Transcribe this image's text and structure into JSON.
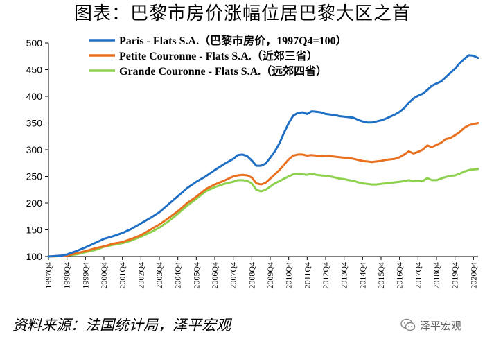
{
  "title": "图表：巴黎市房价涨幅位居巴黎大区之首",
  "source": "资料来源：法国统计局，泽平宏观",
  "watermark": "泽平宏观",
  "chart_data": {
    "type": "line",
    "ylim": [
      100,
      500
    ],
    "yticks": [
      100,
      150,
      200,
      250,
      300,
      350,
      400,
      450,
      500
    ],
    "x_start": 1997.75,
    "x_end": 2021.0,
    "x_tick_labels": [
      "1997Q4",
      "1998Q4",
      "1999Q4",
      "2000Q4",
      "2001Q4",
      "2002Q4",
      "2003Q4",
      "2004Q4",
      "2005Q4",
      "2006Q4",
      "2007Q4",
      "2008Q4",
      "2009Q4",
      "2010Q4",
      "2011Q4",
      "2012Q4",
      "2013Q4",
      "2014Q4",
      "2015Q4",
      "2016Q4",
      "2017Q4",
      "2018Q4",
      "2019Q4",
      "2020Q4"
    ],
    "series": [
      {
        "name": "Paris - Flats S.A.（巴黎市房价，1997Q4=100）",
        "color": "#1f6fc5",
        "points": [
          [
            1997.75,
            100
          ],
          [
            1998.5,
            102
          ],
          [
            1998.75,
            104
          ],
          [
            1999.25,
            110
          ],
          [
            1999.75,
            117
          ],
          [
            2000.25,
            125
          ],
          [
            2000.75,
            133
          ],
          [
            2001.25,
            138
          ],
          [
            2001.75,
            144
          ],
          [
            2002.25,
            152
          ],
          [
            2002.75,
            162
          ],
          [
            2003.25,
            172
          ],
          [
            2003.75,
            183
          ],
          [
            2004.25,
            198
          ],
          [
            2004.75,
            213
          ],
          [
            2005.25,
            228
          ],
          [
            2005.75,
            240
          ],
          [
            2006.25,
            250
          ],
          [
            2006.75,
            262
          ],
          [
            2007.25,
            273
          ],
          [
            2007.75,
            283
          ],
          [
            2008.0,
            290
          ],
          [
            2008.25,
            291
          ],
          [
            2008.5,
            288
          ],
          [
            2008.75,
            280
          ],
          [
            2009.0,
            270
          ],
          [
            2009.25,
            270
          ],
          [
            2009.5,
            274
          ],
          [
            2009.75,
            285
          ],
          [
            2010.0,
            297
          ],
          [
            2010.25,
            312
          ],
          [
            2010.5,
            332
          ],
          [
            2010.75,
            350
          ],
          [
            2011.0,
            364
          ],
          [
            2011.25,
            369
          ],
          [
            2011.5,
            370
          ],
          [
            2011.75,
            367
          ],
          [
            2012.0,
            372
          ],
          [
            2012.25,
            371
          ],
          [
            2012.5,
            370
          ],
          [
            2012.75,
            367
          ],
          [
            2013.0,
            366
          ],
          [
            2013.25,
            365
          ],
          [
            2013.5,
            363
          ],
          [
            2013.75,
            362
          ],
          [
            2014.0,
            361
          ],
          [
            2014.25,
            360
          ],
          [
            2014.5,
            356
          ],
          [
            2014.75,
            353
          ],
          [
            2015.0,
            351
          ],
          [
            2015.25,
            351
          ],
          [
            2015.5,
            353
          ],
          [
            2015.75,
            355
          ],
          [
            2016.0,
            358
          ],
          [
            2016.25,
            362
          ],
          [
            2016.5,
            366
          ],
          [
            2016.75,
            371
          ],
          [
            2017.0,
            378
          ],
          [
            2017.25,
            388
          ],
          [
            2017.5,
            396
          ],
          [
            2017.75,
            401
          ],
          [
            2018.0,
            405
          ],
          [
            2018.25,
            412
          ],
          [
            2018.5,
            420
          ],
          [
            2018.75,
            424
          ],
          [
            2019.0,
            428
          ],
          [
            2019.25,
            436
          ],
          [
            2019.5,
            444
          ],
          [
            2019.75,
            452
          ],
          [
            2020.0,
            462
          ],
          [
            2020.25,
            470
          ],
          [
            2020.5,
            477
          ],
          [
            2020.75,
            476
          ],
          [
            2021.0,
            472
          ]
        ]
      },
      {
        "name": "Petite Couronne - Flats S.A.（近郊三省）",
        "color": "#e8701e",
        "points": [
          [
            1997.75,
            100
          ],
          [
            1998.5,
            101
          ],
          [
            1998.75,
            102
          ],
          [
            1999.25,
            106
          ],
          [
            1999.75,
            110
          ],
          [
            2000.25,
            115
          ],
          [
            2000.75,
            119
          ],
          [
            2001.25,
            124
          ],
          [
            2001.75,
            127
          ],
          [
            2002.25,
            133
          ],
          [
            2002.75,
            140
          ],
          [
            2003.25,
            150
          ],
          [
            2003.75,
            160
          ],
          [
            2004.25,
            172
          ],
          [
            2004.75,
            185
          ],
          [
            2005.25,
            200
          ],
          [
            2005.75,
            212
          ],
          [
            2006.25,
            226
          ],
          [
            2006.75,
            235
          ],
          [
            2007.25,
            242
          ],
          [
            2007.75,
            250
          ],
          [
            2008.0,
            252
          ],
          [
            2008.25,
            253
          ],
          [
            2008.5,
            252
          ],
          [
            2008.75,
            248
          ],
          [
            2009.0,
            237
          ],
          [
            2009.25,
            235
          ],
          [
            2009.5,
            238
          ],
          [
            2009.75,
            246
          ],
          [
            2010.0,
            254
          ],
          [
            2010.25,
            262
          ],
          [
            2010.5,
            272
          ],
          [
            2010.75,
            282
          ],
          [
            2011.0,
            289
          ],
          [
            2011.25,
            291
          ],
          [
            2011.5,
            291
          ],
          [
            2011.75,
            289
          ],
          [
            2012.0,
            290
          ],
          [
            2012.25,
            289
          ],
          [
            2012.5,
            289
          ],
          [
            2012.75,
            288
          ],
          [
            2013.0,
            288
          ],
          [
            2013.25,
            287
          ],
          [
            2013.5,
            286
          ],
          [
            2013.75,
            285
          ],
          [
            2014.0,
            285
          ],
          [
            2014.25,
            283
          ],
          [
            2014.5,
            281
          ],
          [
            2014.75,
            279
          ],
          [
            2015.0,
            278
          ],
          [
            2015.25,
            277
          ],
          [
            2015.5,
            278
          ],
          [
            2015.75,
            279
          ],
          [
            2016.0,
            281
          ],
          [
            2016.25,
            282
          ],
          [
            2016.5,
            283
          ],
          [
            2016.75,
            286
          ],
          [
            2017.0,
            291
          ],
          [
            2017.25,
            297
          ],
          [
            2017.5,
            293
          ],
          [
            2017.75,
            296
          ],
          [
            2018.0,
            300
          ],
          [
            2018.25,
            308
          ],
          [
            2018.5,
            305
          ],
          [
            2018.75,
            309
          ],
          [
            2019.0,
            313
          ],
          [
            2019.25,
            320
          ],
          [
            2019.5,
            322
          ],
          [
            2019.75,
            327
          ],
          [
            2020.0,
            333
          ],
          [
            2020.25,
            341
          ],
          [
            2020.5,
            346
          ],
          [
            2020.75,
            348
          ],
          [
            2021.0,
            350
          ]
        ]
      },
      {
        "name": "Grande Couronne - Flats S.A.（远郊四省）",
        "color": "#8ed14f",
        "points": [
          [
            1997.75,
            100
          ],
          [
            1998.5,
            101
          ],
          [
            1998.75,
            102
          ],
          [
            1999.25,
            104
          ],
          [
            1999.75,
            108
          ],
          [
            2000.25,
            112
          ],
          [
            2000.75,
            118
          ],
          [
            2001.25,
            122
          ],
          [
            2001.75,
            125
          ],
          [
            2002.25,
            130
          ],
          [
            2002.75,
            137
          ],
          [
            2003.25,
            145
          ],
          [
            2003.75,
            154
          ],
          [
            2004.25,
            166
          ],
          [
            2004.75,
            180
          ],
          [
            2005.25,
            195
          ],
          [
            2005.75,
            208
          ],
          [
            2006.25,
            222
          ],
          [
            2006.75,
            230
          ],
          [
            2007.25,
            236
          ],
          [
            2007.75,
            240
          ],
          [
            2008.0,
            243
          ],
          [
            2008.25,
            243
          ],
          [
            2008.5,
            242
          ],
          [
            2008.75,
            237
          ],
          [
            2009.0,
            225
          ],
          [
            2009.25,
            222
          ],
          [
            2009.5,
            225
          ],
          [
            2009.75,
            231
          ],
          [
            2010.0,
            237
          ],
          [
            2010.25,
            241
          ],
          [
            2010.5,
            246
          ],
          [
            2010.75,
            250
          ],
          [
            2011.0,
            254
          ],
          [
            2011.25,
            255
          ],
          [
            2011.5,
            254
          ],
          [
            2011.75,
            253
          ],
          [
            2012.0,
            255
          ],
          [
            2012.25,
            253
          ],
          [
            2012.5,
            252
          ],
          [
            2012.75,
            251
          ],
          [
            2013.0,
            250
          ],
          [
            2013.25,
            248
          ],
          [
            2013.5,
            246
          ],
          [
            2013.75,
            245
          ],
          [
            2014.0,
            243
          ],
          [
            2014.25,
            242
          ],
          [
            2014.5,
            239
          ],
          [
            2014.75,
            237
          ],
          [
            2015.0,
            236
          ],
          [
            2015.25,
            235
          ],
          [
            2015.5,
            235
          ],
          [
            2015.75,
            236
          ],
          [
            2016.0,
            237
          ],
          [
            2016.25,
            238
          ],
          [
            2016.5,
            239
          ],
          [
            2016.75,
            240
          ],
          [
            2017.0,
            241
          ],
          [
            2017.25,
            243
          ],
          [
            2017.5,
            241
          ],
          [
            2017.75,
            242
          ],
          [
            2018.0,
            241
          ],
          [
            2018.25,
            247
          ],
          [
            2018.5,
            243
          ],
          [
            2018.75,
            243
          ],
          [
            2019.0,
            246
          ],
          [
            2019.25,
            249
          ],
          [
            2019.5,
            251
          ],
          [
            2019.75,
            252
          ],
          [
            2020.0,
            255
          ],
          [
            2020.25,
            259
          ],
          [
            2020.5,
            262
          ],
          [
            2020.75,
            263
          ],
          [
            2021.0,
            264
          ]
        ]
      }
    ]
  }
}
